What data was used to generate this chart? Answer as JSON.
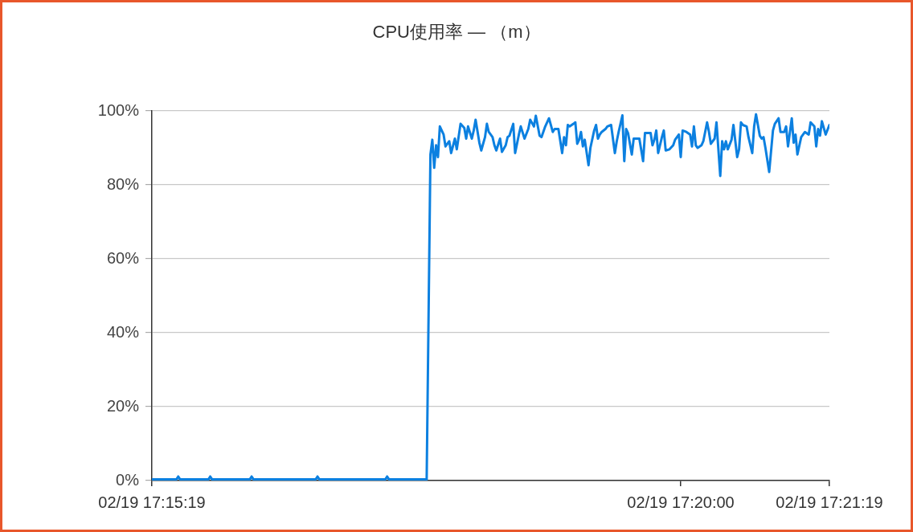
{
  "chart_data": {
    "type": "line",
    "title": "CPU使用率 — （m）",
    "x": [
      "--02-19T17:15:19",
      "--02-19T17:15:32",
      "--02-19T17:15:33",
      "--02-19T17:15:34",
      "--02-19T17:15:49",
      "--02-19T17:15:50",
      "--02-19T17:15:51",
      "--02-19T17:16:11",
      "--02-19T17:16:12",
      "--02-19T17:16:13",
      "--02-19T17:16:46",
      "--02-19T17:16:47",
      "--02-19T17:16:48",
      "--02-19T17:17:23",
      "--02-19T17:17:24",
      "--02-19T17:17:25",
      "--02-19T17:17:45",
      "--02-19T17:17:47",
      "--02-19T17:17:48",
      "--02-19T17:17:49",
      "--02-19T17:17:50",
      "--02-19T17:17:51",
      "--02-19T17:17:52",
      "--02-19T17:17:54",
      "--02-19T17:17:55",
      "--02-19T17:17:57",
      "--02-19T17:17:58",
      "--02-19T17:18:00",
      "--02-19T17:18:01",
      "--02-19T17:18:03",
      "--02-19T17:18:05",
      "--02-19T17:18:06",
      "--02-19T17:18:07",
      "--02-19T17:18:09",
      "--02-19T17:18:10",
      "--02-19T17:18:11",
      "--02-19T17:18:13",
      "--02-19T17:18:14",
      "--02-19T17:18:16",
      "--02-19T17:18:17",
      "--02-19T17:18:18",
      "--02-19T17:18:20",
      "--02-19T17:18:21",
      "--02-19T17:18:22",
      "--02-19T17:18:24",
      "--02-19T17:18:25",
      "--02-19T17:18:27",
      "--02-19T17:18:28",
      "--02-19T17:18:29",
      "--02-19T17:18:31",
      "--02-19T17:18:32",
      "--02-19T17:18:34",
      "--02-19T17:18:35",
      "--02-19T17:18:37",
      "--02-19T17:18:39",
      "--02-19T17:18:40",
      "--02-19T17:18:42",
      "--02-19T17:18:43",
      "--02-19T17:18:45",
      "--02-19T17:18:46",
      "--02-19T17:18:48",
      "--02-19T17:18:50",
      "--02-19T17:18:52",
      "--02-19T17:18:53",
      "--02-19T17:18:55",
      "--02-19T17:18:57",
      "--02-19T17:18:58",
      "--02-19T17:18:59",
      "--02-19T17:19:00",
      "--02-19T17:19:01",
      "--02-19T17:19:03",
      "--02-19T17:19:04",
      "--02-19T17:19:05",
      "--02-19T17:19:06",
      "--02-19T17:19:07",
      "--02-19T17:19:08",
      "--02-19T17:19:09",
      "--02-19T17:19:11",
      "--02-19T17:19:12",
      "--02-19T17:19:14",
      "--02-19T17:19:15",
      "--02-19T17:19:16",
      "--02-19T17:19:17",
      "--02-19T17:19:18",
      "--02-19T17:19:20",
      "--02-19T17:19:21",
      "--02-19T17:19:23",
      "--02-19T17:19:25",
      "--02-19T17:19:26",
      "--02-19T17:19:27",
      "--02-19T17:19:29",
      "--02-19T17:19:30",
      "--02-19T17:19:31",
      "--02-19T17:19:32",
      "--02-19T17:19:34",
      "--02-19T17:19:35",
      "--02-19T17:19:38",
      "--02-19T17:19:40",
      "--02-19T17:19:41",
      "--02-19T17:19:44",
      "--02-19T17:19:45",
      "--02-19T17:19:46",
      "--02-19T17:19:47",
      "--02-19T17:19:48",
      "--02-19T17:19:50",
      "--02-19T17:19:51",
      "--02-19T17:19:52",
      "--02-19T17:19:54",
      "--02-19T17:19:56",
      "--02-19T17:19:57",
      "--02-19T17:19:59",
      "--02-19T17:20:00",
      "--02-19T17:20:01",
      "--02-19T17:20:03",
      "--02-19T17:20:05",
      "--02-19T17:20:06",
      "--02-19T17:20:07",
      "--02-19T17:20:08",
      "--02-19T17:20:09",
      "--02-19T17:20:11",
      "--02-19T17:20:12",
      "--02-19T17:20:14",
      "--02-19T17:20:15",
      "--02-19T17:20:16",
      "--02-19T17:20:18",
      "--02-19T17:20:19",
      "--02-19T17:20:21",
      "--02-19T17:20:22",
      "--02-19T17:20:23",
      "--02-19T17:20:24",
      "--02-19T17:20:25",
      "--02-19T17:20:27",
      "--02-19T17:20:28",
      "--02-19T17:20:30",
      "--02-19T17:20:31",
      "--02-19T17:20:32",
      "--02-19T17:20:33",
      "--02-19T17:20:35",
      "--02-19T17:20:36",
      "--02-19T17:20:38",
      "--02-19T17:20:39",
      "--02-19T17:20:40",
      "--02-19T17:20:42",
      "--02-19T17:20:43",
      "--02-19T17:20:44",
      "--02-19T17:20:45",
      "--02-19T17:20:47",
      "--02-19T17:20:49",
      "--02-19T17:20:50",
      "--02-19T17:20:52",
      "--02-19T17:20:53",
      "--02-19T17:20:55",
      "--02-19T17:20:56",
      "--02-19T17:20:57",
      "--02-19T17:20:59",
      "--02-19T17:21:00",
      "--02-19T17:21:01",
      "--02-19T17:21:02",
      "--02-19T17:21:04",
      "--02-19T17:21:05",
      "--02-19T17:21:06",
      "--02-19T17:21:08",
      "--02-19T17:21:09",
      "--02-19T17:21:11",
      "--02-19T17:21:12",
      "--02-19T17:21:13",
      "--02-19T17:21:14",
      "--02-19T17:21:15",
      "--02-19T17:21:17",
      "--02-19T17:21:19"
    ],
    "values": [
      0.3,
      0.3,
      1.1,
      0.3,
      0.3,
      1.1,
      0.3,
      0.3,
      1.1,
      0.3,
      0.3,
      1.1,
      0.3,
      0.3,
      1.1,
      0.3,
      0.3,
      88.2,
      92.2,
      84.6,
      90.7,
      87.5,
      95.8,
      93.6,
      90.4,
      91.8,
      88.6,
      92.5,
      89.6,
      96.5,
      95.4,
      92.5,
      95.8,
      92.5,
      94.7,
      97.6,
      91.4,
      89.3,
      92.9,
      96.5,
      94.3,
      92.9,
      90.7,
      89.3,
      92.5,
      88.9,
      90.7,
      92.9,
      93.3,
      96.5,
      88.6,
      93.6,
      95.8,
      92.5,
      95.1,
      97.6,
      95.8,
      98.7,
      93.3,
      92.9,
      95.8,
      98.0,
      94.3,
      95.1,
      95.1,
      88.6,
      92.9,
      90.7,
      96.2,
      95.8,
      96.5,
      96.9,
      91.1,
      92.2,
      94.3,
      90.4,
      92.2,
      85.3,
      90.0,
      94.7,
      96.2,
      92.5,
      93.6,
      94.3,
      95.1,
      95.8,
      96.2,
      88.6,
      91.8,
      94.3,
      98.8,
      86.4,
      95.1,
      94.0,
      88.2,
      92.5,
      92.5,
      86.4,
      94.0,
      94.0,
      90.7,
      92.2,
      94.7,
      88.6,
      92.9,
      94.7,
      89.3,
      89.6,
      90.7,
      92.2,
      93.6,
      87.5,
      94.7,
      94.3,
      93.6,
      90.4,
      95.8,
      90.7,
      90.0,
      90.7,
      91.8,
      96.9,
      94.3,
      91.1,
      92.5,
      96.9,
      82.4,
      91.8,
      89.6,
      91.8,
      89.6,
      92.2,
      96.2,
      87.5,
      89.6,
      96.9,
      96.2,
      95.8,
      92.9,
      88.6,
      95.8,
      99.1,
      93.3,
      92.5,
      92.9,
      90.0,
      83.5,
      94.7,
      96.5,
      98.0,
      94.3,
      94.3,
      95.8,
      90.4,
      98.0,
      91.4,
      93.6,
      88.2,
      92.9,
      93.6,
      94.3,
      93.6,
      96.9,
      95.8,
      90.4,
      95.1,
      93.3,
      97.2,
      93.6,
      96.2
    ],
    "color": "#0c80e0",
    "xlim": [
      "--02-19T17:15:19",
      "--02-19T17:21:19"
    ],
    "xticks": [
      {
        "value": "--02-19T17:15:19",
        "label": "02/19 17:15:19"
      },
      {
        "value": "--02-19T17:20:00",
        "label": "02/19 17:20:00"
      },
      {
        "value": "--02-19T17:21:19",
        "label": "02/19 17:21:19"
      }
    ],
    "ylim": [
      0,
      100
    ],
    "yticks": [
      {
        "value": 0,
        "label": "0%"
      },
      {
        "value": 20,
        "label": "20%"
      },
      {
        "value": 40,
        "label": "40%"
      },
      {
        "value": 60,
        "label": "60%"
      },
      {
        "value": 80,
        "label": "80%"
      },
      {
        "value": 100,
        "label": "100%"
      }
    ],
    "grid": "y",
    "marker": "none"
  }
}
